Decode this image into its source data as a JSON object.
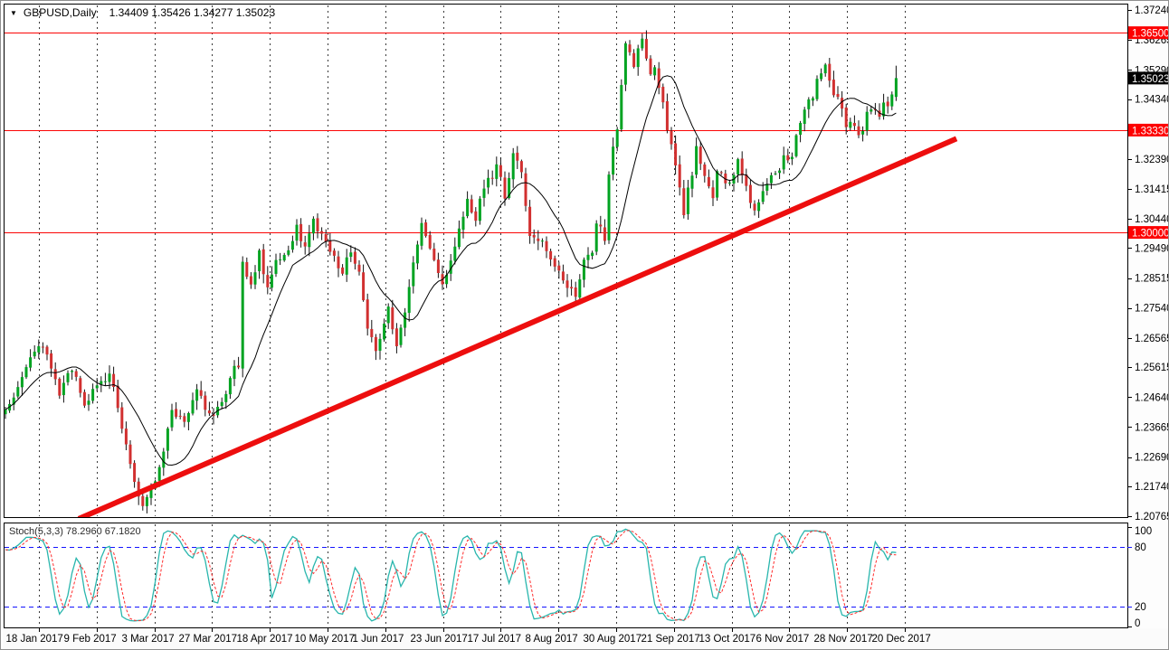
{
  "window": {
    "dropdown_glyph": "▼",
    "symbol_title": "GBPUSD,Daily",
    "ohlc_text": "1.34409 1.35426 1.34277 1.35023"
  },
  "chart_data": {
    "type": "candlestick",
    "symbol": "GBPUSD",
    "timeframe": "Daily",
    "title": "GBPUSD,Daily",
    "last_bar": {
      "open": 1.34409,
      "high": 1.35426,
      "low": 1.34277,
      "close": 1.35023
    },
    "current_price": 1.35023,
    "price_range": {
      "top": 1.3724,
      "bottom": 1.20765
    },
    "y_axis_ticks": [
      "1.37240",
      "1.36265",
      "1.35290",
      "1.34340",
      "1.32390",
      "1.31415",
      "1.30440",
      "1.29490",
      "1.28515",
      "1.27540",
      "1.26565",
      "1.25615",
      "1.24640",
      "1.23665",
      "1.22690",
      "1.21740",
      "1.20765"
    ],
    "price_badges": [
      {
        "value": "1.36500",
        "price": 1.365,
        "role": "resistance-level",
        "bg": "#fd0000",
        "fg": "#ffffff"
      },
      {
        "value": "1.35023",
        "price": 1.35023,
        "role": "current-price",
        "bg": "#000000",
        "fg": "#ffffff"
      },
      {
        "value": "1.33330",
        "price": 1.3333,
        "role": "support-level",
        "bg": "#fd0000",
        "fg": "#ffffff"
      },
      {
        "value": "1.30000",
        "price": 1.3,
        "role": "support-level",
        "bg": "#fd0000",
        "fg": "#ffffff"
      }
    ],
    "horizontal_level_lines": [
      1.365,
      1.3333,
      1.3
    ],
    "level_line_color": "#fb0505",
    "trend_line": {
      "from_bar": 17.6,
      "from_price": 1.2068,
      "to_bar": 228.5,
      "to_price": 1.3305,
      "color": "#ed0e0e"
    },
    "x_tick_labels": [
      "18 Jan 2017",
      "9 Feb 2017",
      "3 Mar 2017",
      "27 Mar 2017",
      "18 Apr 2017",
      "10 May 2017",
      "1 Jun 2017",
      "23 Jun 2017",
      "17 Jul 2017",
      "8 Aug 2017",
      "30 Aug 2017",
      "21 Sep 2017",
      "13 Oct 2017",
      "6 Nov 2017",
      "28 Nov 2017",
      "20 Dec 2017"
    ],
    "bar_count": 215,
    "candle_colors": {
      "up": "#00a321",
      "down": "#d13030",
      "wick": "#111111"
    },
    "moving_average": {
      "type": "SMA",
      "period": 13,
      "color": "#000000"
    },
    "price_path": [
      [
        0,
        1.242
      ],
      [
        3,
        1.25
      ],
      [
        6,
        1.26
      ],
      [
        9,
        1.263
      ],
      [
        13,
        1.248
      ],
      [
        16,
        1.256
      ],
      [
        19,
        1.243
      ],
      [
        22,
        1.25
      ],
      [
        25,
        1.254
      ],
      [
        27,
        1.244
      ],
      [
        29,
        1.23
      ],
      [
        31,
        1.218
      ],
      [
        33,
        1.212
      ],
      [
        35,
        1.216
      ],
      [
        37,
        1.223
      ],
      [
        40,
        1.242
      ],
      [
        43,
        1.238
      ],
      [
        46,
        1.248
      ],
      [
        49,
        1.24
      ],
      [
        52,
        1.245
      ],
      [
        55,
        1.256
      ],
      [
        56,
        1.2575
      ],
      [
        57,
        1.289
      ],
      [
        59,
        1.284
      ],
      [
        61,
        1.293
      ],
      [
        63,
        1.282
      ],
      [
        65,
        1.29
      ],
      [
        68,
        1.294
      ],
      [
        70,
        1.301
      ],
      [
        72,
        1.296
      ],
      [
        74,
        1.303
      ],
      [
        76,
        1.3
      ],
      [
        79,
        1.292
      ],
      [
        81,
        1.286
      ],
      [
        83,
        1.295
      ],
      [
        85,
        1.287
      ],
      [
        87,
        1.27
      ],
      [
        89,
        1.262
      ],
      [
        92,
        1.276
      ],
      [
        94,
        1.264
      ],
      [
        96,
        1.275
      ],
      [
        98,
        1.29
      ],
      [
        100,
        1.302
      ],
      [
        102,
        1.294
      ],
      [
        105,
        1.283
      ],
      [
        107,
        1.292
      ],
      [
        109,
        1.3
      ],
      [
        111,
        1.31
      ],
      [
        113,
        1.305
      ],
      [
        115,
        1.314
      ],
      [
        118,
        1.321
      ],
      [
        120,
        1.312
      ],
      [
        122,
        1.3255
      ],
      [
        124,
        1.32
      ],
      [
        126,
        1.3
      ],
      [
        129,
        1.296
      ],
      [
        131,
        1.29
      ],
      [
        133,
        1.287
      ],
      [
        135,
        1.283
      ],
      [
        137,
        1.2775
      ],
      [
        139,
        1.29
      ],
      [
        141,
        1.293
      ],
      [
        142,
        1.303
      ],
      [
        144,
        1.298
      ],
      [
        145,
        1.32
      ],
      [
        147,
        1.335
      ],
      [
        149,
        1.36
      ],
      [
        151,
        1.355
      ],
      [
        153,
        1.364
      ],
      [
        154,
        1.356
      ],
      [
        155,
        1.35
      ],
      [
        156,
        1.354
      ],
      [
        158,
        1.342
      ],
      [
        159,
        1.334
      ],
      [
        161,
        1.322
      ],
      [
        163,
        1.306
      ],
      [
        165,
        1.32
      ],
      [
        166,
        1.327
      ],
      [
        168,
        1.318
      ],
      [
        170,
        1.312
      ],
      [
        171,
        1.321
      ],
      [
        173,
        1.315
      ],
      [
        175,
        1.32
      ],
      [
        176,
        1.323
      ],
      [
        178,
        1.314
      ],
      [
        180,
        1.306
      ],
      [
        182,
        1.313
      ],
      [
        184,
        1.32
      ],
      [
        185,
        1.318
      ],
      [
        187,
        1.325
      ],
      [
        189,
        1.323
      ],
      [
        190,
        1.333
      ],
      [
        192,
        1.339
      ],
      [
        194,
        1.345
      ],
      [
        196,
        1.352
      ],
      [
        197,
        1.3545
      ],
      [
        198,
        1.348
      ],
      [
        200,
        1.343
      ],
      [
        201,
        1.339
      ],
      [
        202,
        1.334
      ],
      [
        203,
        1.336
      ],
      [
        205,
        1.332
      ],
      [
        206,
        1.333
      ],
      [
        207,
        1.338
      ],
      [
        209,
        1.34
      ],
      [
        210,
        1.339
      ],
      [
        211,
        1.341
      ],
      [
        213,
        1.344
      ],
      [
        214,
        1.3502
      ]
    ],
    "indicator": {
      "name": "Stoch",
      "params": [
        5,
        3,
        3
      ],
      "label": "Stoch(5,3,3) 78.2960 67.1820",
      "k_value": 78.296,
      "d_value": 67.182,
      "range": [
        0,
        100
      ],
      "scale_ticks": [
        "100",
        "80",
        "20",
        "0"
      ],
      "level_lines": [
        80,
        20
      ],
      "k_color": "#29b6ad",
      "d_color": "#ff2b2b",
      "level_color": "#1414ff"
    }
  }
}
